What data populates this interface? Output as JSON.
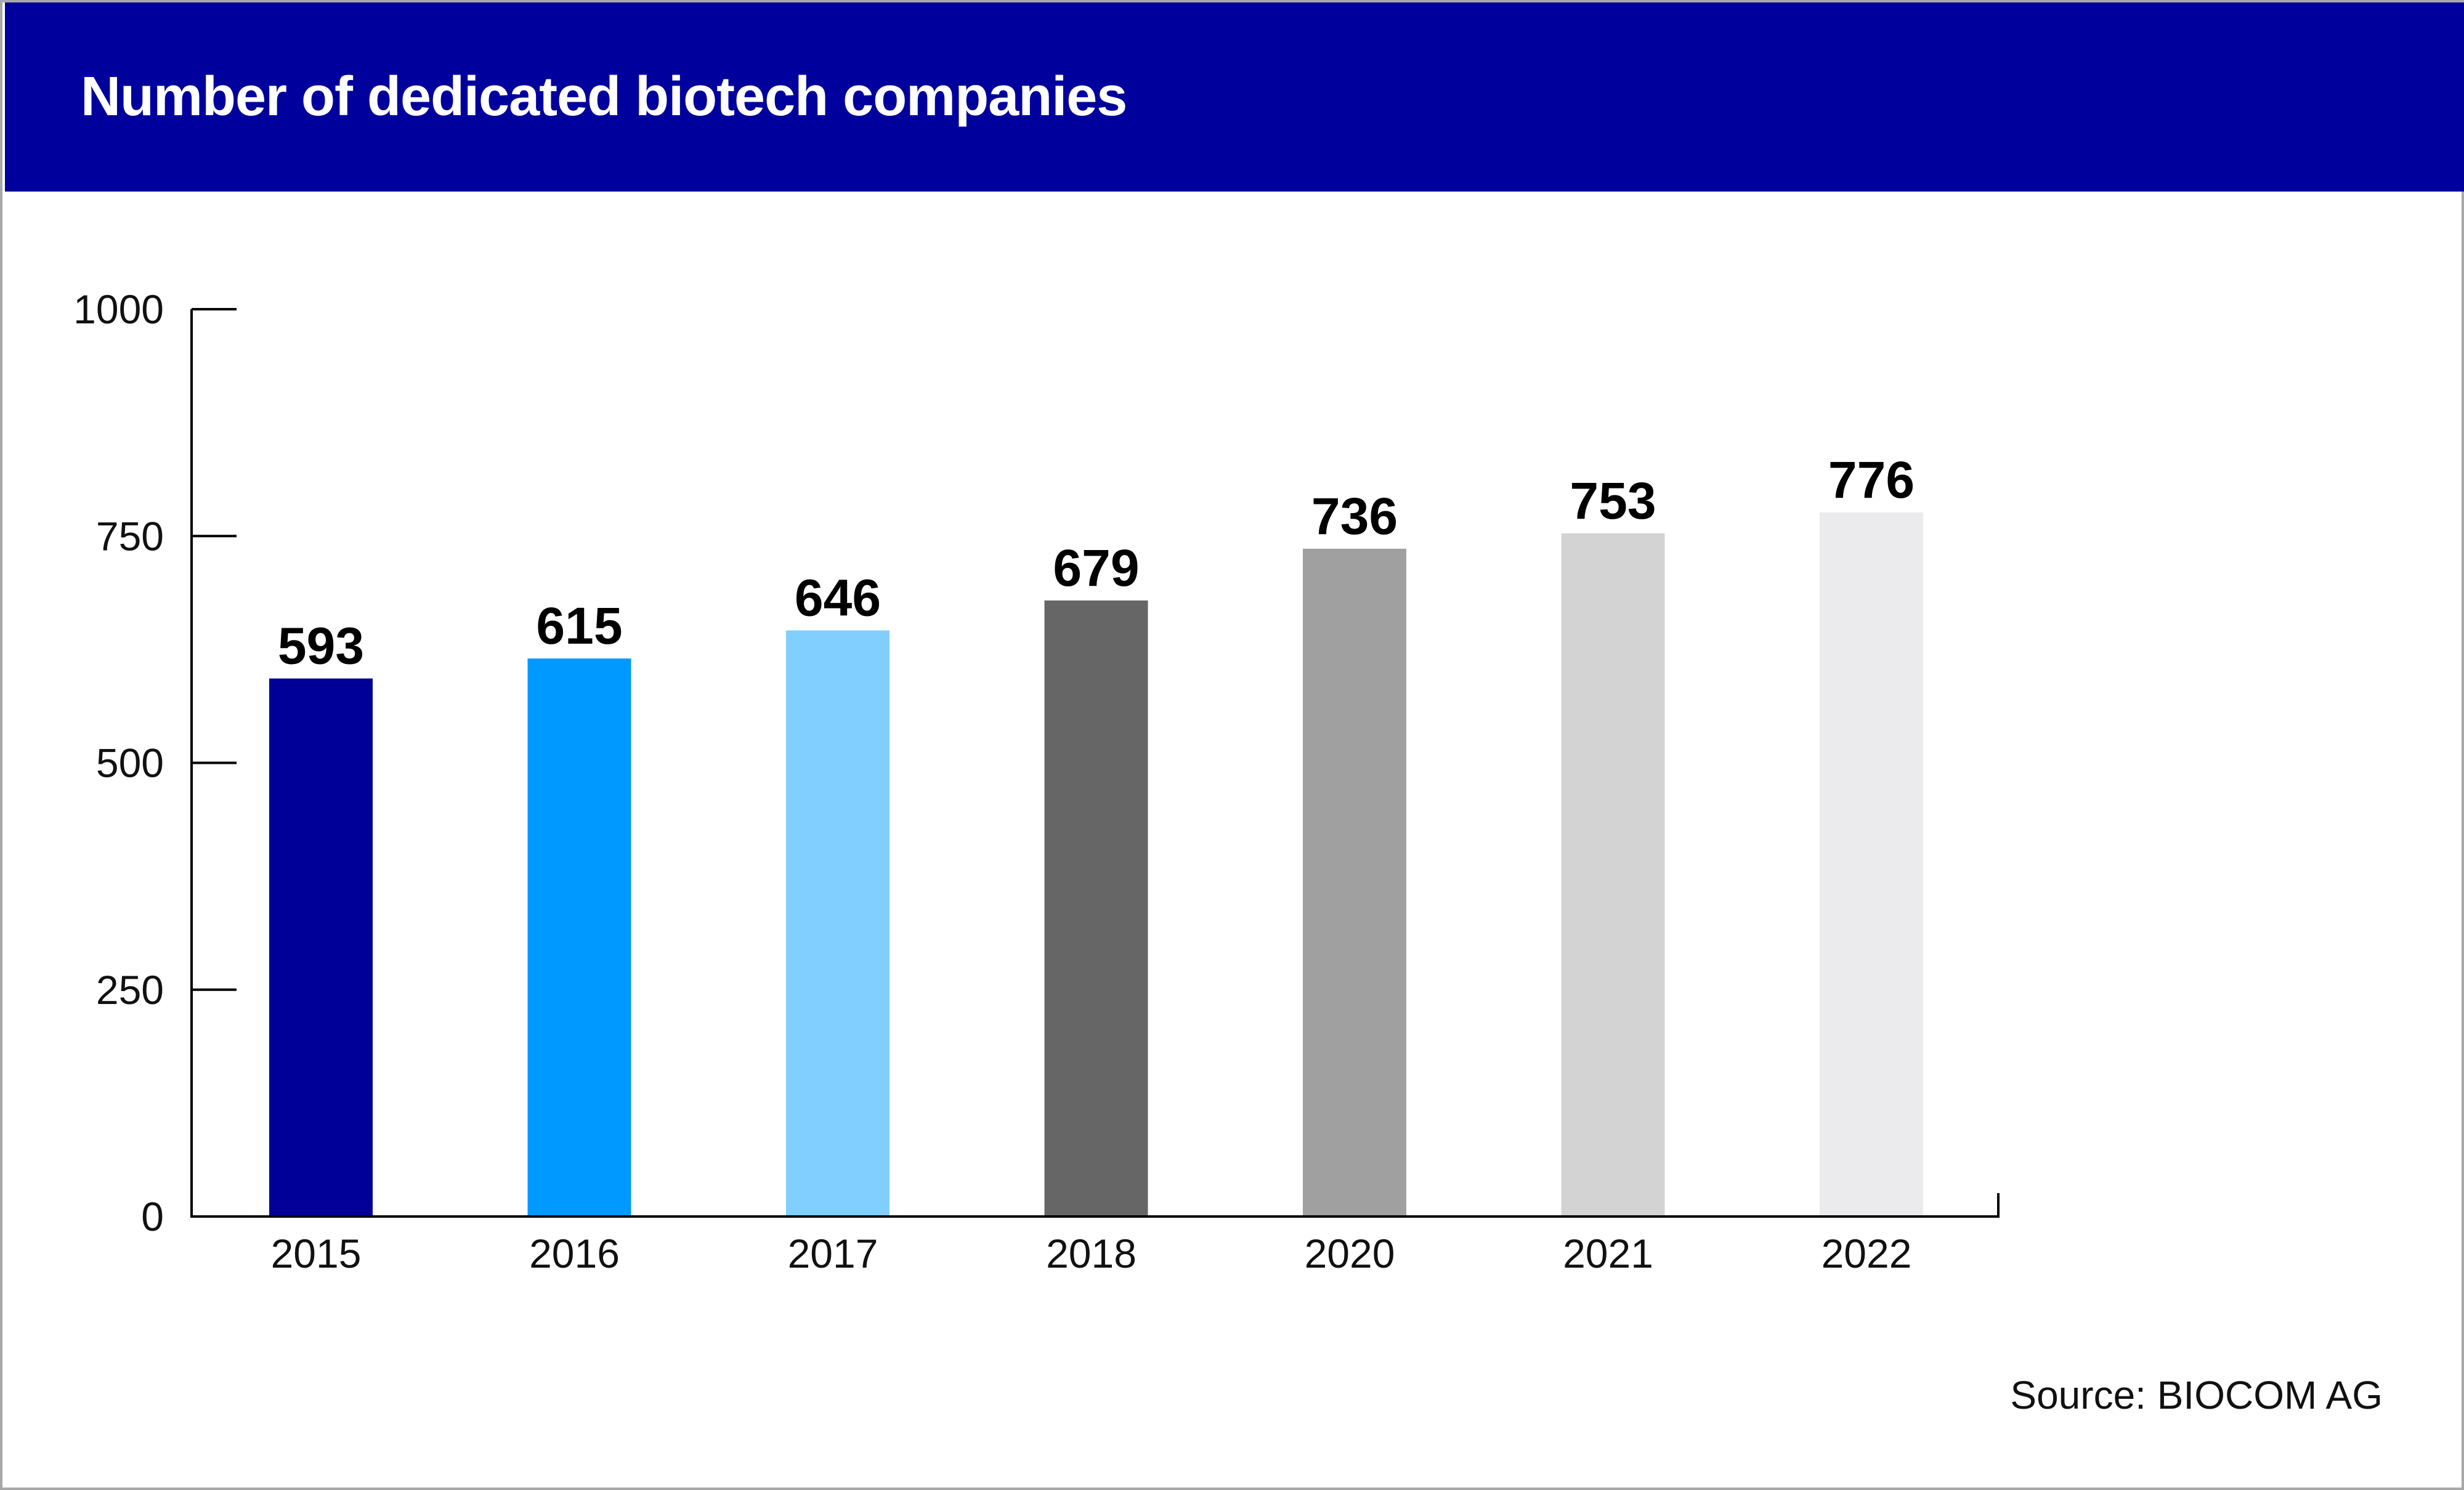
{
  "header": {
    "title": "Number of dedicated biotech companies"
  },
  "footer": {
    "source": "Source: BIOCOM AG"
  },
  "colors": {
    "header_background": "#00009c",
    "header_text": "#ffffff",
    "axis": "#000000"
  },
  "chart_data": {
    "type": "bar",
    "title": "Number of dedicated biotech companies",
    "xlabel": "",
    "ylabel": "",
    "categories": [
      "2015",
      "2016",
      "2017",
      "2018",
      "2020",
      "2021",
      "2022"
    ],
    "values": [
      593,
      615,
      646,
      679,
      736,
      753,
      776
    ],
    "value_labels": [
      "593",
      "615",
      "646",
      "679",
      "736",
      "753",
      "776"
    ],
    "bar_colors": [
      "#000099",
      "#0099ff",
      "#80cfff",
      "#666666",
      "#a0a0a0",
      "#d3d3d3",
      "#ebebed"
    ],
    "ylim": [
      0,
      1000
    ],
    "yticks": [
      0,
      250,
      500,
      750,
      1000
    ],
    "ytick_labels": [
      "0",
      "250",
      "500",
      "750",
      "1000"
    ],
    "grid": false,
    "legend": "none"
  }
}
